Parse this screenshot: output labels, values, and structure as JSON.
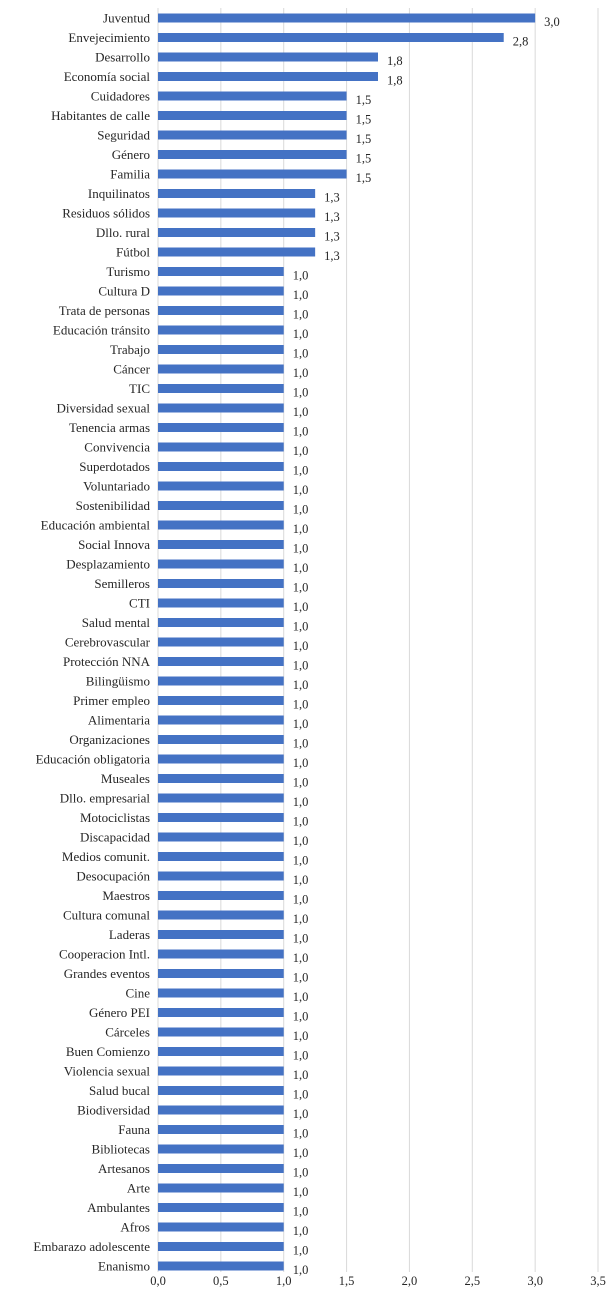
{
  "chart_data": {
    "type": "bar",
    "orientation": "horizontal",
    "title": "",
    "xlabel": "",
    "ylabel": "",
    "xlim": [
      0,
      3.5
    ],
    "x_ticks": [
      "0,0",
      "0,5",
      "1,0",
      "1,5",
      "2,0",
      "2,5",
      "3,0",
      "3,5"
    ],
    "grid": "vertical",
    "bar_color": "#4472c4",
    "categories": [
      "Juventud",
      "Envejecimiento",
      "Desarrollo",
      "Economía social",
      "Cuidadores",
      "Habitantes de calle",
      "Seguridad",
      "Género",
      "Familia",
      "Inquilinatos",
      "Residuos sólidos",
      "Dllo. rural",
      "Fútbol",
      "Turismo",
      "Cultura D",
      "Trata de personas",
      "Educación tránsito",
      "Trabajo",
      "Cáncer",
      "TIC",
      "Diversidad sexual",
      "Tenencia armas",
      "Convivencia",
      "Superdotados",
      "Voluntariado",
      "Sostenibilidad",
      "Educación ambiental",
      "Social Innova",
      "Desplazamiento",
      "Semilleros",
      "CTI",
      "Salud mental",
      "Cerebrovascular",
      "Protección NNA",
      "Bilingüismo",
      "Primer empleo",
      "Alimentaria",
      "Organizaciones",
      "Educación obligatoria",
      "Museales",
      "Dllo. empresarial",
      "Motociclistas",
      "Discapacidad",
      "Medios comunit.",
      "Desocupación",
      "Maestros",
      "Cultura comunal",
      "Laderas",
      "Cooperacion Intl.",
      "Grandes eventos",
      "Cine",
      "Género PEI",
      "Cárceles",
      "Buen Comienzo",
      "Violencia sexual",
      "Salud bucal",
      "Biodiversidad",
      "Fauna",
      "Bibliotecas",
      "Artesanos",
      "Arte",
      "Ambulantes",
      "Afros",
      "Embarazo adolescente",
      "Enanismo"
    ],
    "values": [
      3.0,
      2.75,
      1.75,
      1.75,
      1.5,
      1.5,
      1.5,
      1.5,
      1.5,
      1.25,
      1.25,
      1.25,
      1.25,
      1.0,
      1.0,
      1.0,
      1.0,
      1.0,
      1.0,
      1.0,
      1.0,
      1.0,
      1.0,
      1.0,
      1.0,
      1.0,
      1.0,
      1.0,
      1.0,
      1.0,
      1.0,
      1.0,
      1.0,
      1.0,
      1.0,
      1.0,
      1.0,
      1.0,
      1.0,
      1.0,
      1.0,
      1.0,
      1.0,
      1.0,
      1.0,
      1.0,
      1.0,
      1.0,
      1.0,
      1.0,
      1.0,
      1.0,
      1.0,
      1.0,
      1.0,
      1.0,
      1.0,
      1.0,
      1.0,
      1.0,
      1.0,
      1.0,
      1.0,
      1.0,
      1.0
    ],
    "data_labels": [
      "3,0",
      "2,8",
      "1,8",
      "1,8",
      "1,5",
      "1,5",
      "1,5",
      "1,5",
      "1,5",
      "1,3",
      "1,3",
      "1,3",
      "1,3",
      "1,0",
      "1,0",
      "1,0",
      "1,0",
      "1,0",
      "1,0",
      "1,0",
      "1,0",
      "1,0",
      "1,0",
      "1,0",
      "1,0",
      "1,0",
      "1,0",
      "1,0",
      "1,0",
      "1,0",
      "1,0",
      "1,0",
      "1,0",
      "1,0",
      "1,0",
      "1,0",
      "1,0",
      "1,0",
      "1,0",
      "1,0",
      "1,0",
      "1,0",
      "1,0",
      "1,0",
      "1,0",
      "1,0",
      "1,0",
      "1,0",
      "1,0",
      "1,0",
      "1,0",
      "1,0",
      "1,0",
      "1,0",
      "1,0",
      "1,0",
      "1,0",
      "1,0",
      "1,0",
      "1,0",
      "1,0",
      "1,0",
      "1,0",
      "1,0",
      "1,0"
    ]
  }
}
